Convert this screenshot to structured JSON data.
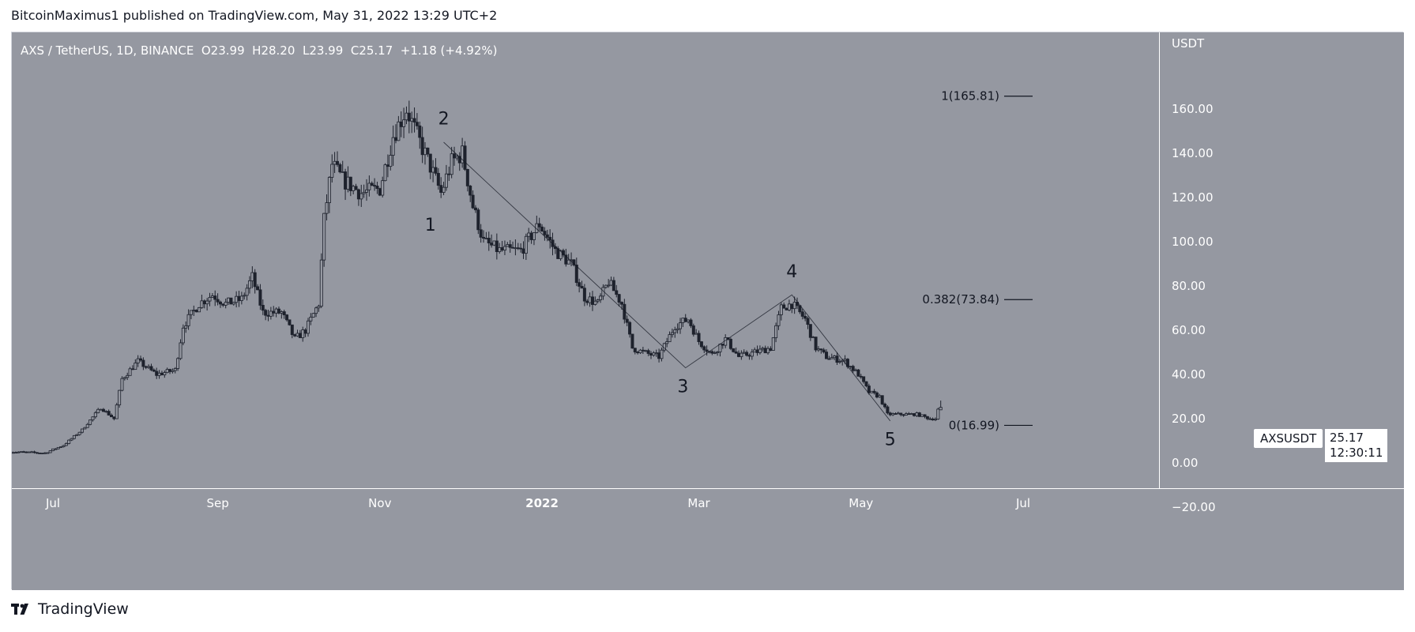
{
  "header": {
    "author": "BitcoinMaximus1",
    "published_text": "published on TradingView.com, May 31, 2022 13:29 UTC+2"
  },
  "legend": {
    "symbol": "AXS / TetherUS, 1D, BINANCE",
    "open_label": "O",
    "open": "23.99",
    "high_label": "H",
    "high": "28.20",
    "low_label": "L",
    "low": "23.99",
    "close_label": "C",
    "close": "25.17",
    "change": "+1.18",
    "change_pct": "(+4.92%)"
  },
  "price_scale": {
    "currency": "USDT",
    "ticks": [
      "160.00",
      "140.00",
      "120.00",
      "100.00",
      "80.00",
      "60.00",
      "40.00",
      "20.00",
      "0.00",
      "−20.00"
    ]
  },
  "last_price": {
    "symbol_tag": "AXSUSDT",
    "price": "25.17",
    "countdown": "12:30:11"
  },
  "branding": {
    "footer_text": "TradingView"
  },
  "colors": {
    "plot_background": "#9598a1",
    "candle": "#1e222d",
    "annotation": "#131722",
    "text_light": "#ffffff",
    "fib_line": "#131722"
  },
  "chart_data": {
    "type": "candlestick",
    "pair": "AXS/USDT",
    "interval": "1D",
    "exchange": "BINANCE",
    "ylim": [
      -25,
      182
    ],
    "x_ticks": [
      {
        "label": "Jul",
        "date": "2021-07-01"
      },
      {
        "label": "Sep",
        "date": "2021-09-01"
      },
      {
        "label": "Nov",
        "date": "2021-11-01"
      },
      {
        "label": "2022",
        "date": "2022-01-01"
      },
      {
        "label": "Mar",
        "date": "2022-03-01"
      },
      {
        "label": "May",
        "date": "2022-05-01"
      },
      {
        "label": "Jul",
        "date": "2022-07-01"
      }
    ],
    "price_anchors": [
      {
        "date": "2021-06-15",
        "close": 5
      },
      {
        "date": "2021-06-28",
        "close": 4.5
      },
      {
        "date": "2021-07-05",
        "close": 8
      },
      {
        "date": "2021-07-12",
        "close": 15
      },
      {
        "date": "2021-07-19",
        "close": 25
      },
      {
        "date": "2021-07-24",
        "close": 20
      },
      {
        "date": "2021-07-27",
        "close": 38
      },
      {
        "date": "2021-08-02",
        "close": 46
      },
      {
        "date": "2021-08-09",
        "close": 40
      },
      {
        "date": "2021-08-16",
        "close": 42
      },
      {
        "date": "2021-08-19",
        "close": 62
      },
      {
        "date": "2021-08-25",
        "close": 72
      },
      {
        "date": "2021-08-30",
        "close": 76
      },
      {
        "date": "2021-09-04",
        "close": 72
      },
      {
        "date": "2021-09-10",
        "close": 74
      },
      {
        "date": "2021-09-14",
        "close": 84
      },
      {
        "date": "2021-09-18",
        "close": 68
      },
      {
        "date": "2021-09-25",
        "close": 68
      },
      {
        "date": "2021-09-30",
        "close": 56
      },
      {
        "date": "2021-10-04",
        "close": 60
      },
      {
        "date": "2021-10-09",
        "close": 72
      },
      {
        "date": "2021-10-11",
        "close": 110
      },
      {
        "date": "2021-10-14",
        "close": 135
      },
      {
        "date": "2021-10-18",
        "close": 128
      },
      {
        "date": "2021-10-25",
        "close": 122
      },
      {
        "date": "2021-11-01",
        "close": 124
      },
      {
        "date": "2021-11-06",
        "close": 148
      },
      {
        "date": "2021-11-11",
        "close": 160
      },
      {
        "date": "2021-11-15",
        "close": 148
      },
      {
        "date": "2021-11-20",
        "close": 134
      },
      {
        "date": "2021-11-24",
        "close": 122
      },
      {
        "date": "2021-11-28",
        "close": 136
      },
      {
        "date": "2021-12-02",
        "close": 140
      },
      {
        "date": "2021-12-06",
        "close": 116
      },
      {
        "date": "2021-12-10",
        "close": 100
      },
      {
        "date": "2021-12-16",
        "close": 96
      },
      {
        "date": "2021-12-24",
        "close": 96
      },
      {
        "date": "2021-12-31",
        "close": 108
      },
      {
        "date": "2022-01-06",
        "close": 96
      },
      {
        "date": "2022-01-12",
        "close": 90
      },
      {
        "date": "2022-01-17",
        "close": 75
      },
      {
        "date": "2022-01-22",
        "close": 72
      },
      {
        "date": "2022-01-26",
        "close": 82
      },
      {
        "date": "2022-01-31",
        "close": 72
      },
      {
        "date": "2022-02-04",
        "close": 52
      },
      {
        "date": "2022-02-08",
        "close": 50
      },
      {
        "date": "2022-02-14",
        "close": 48
      },
      {
        "date": "2022-02-20",
        "close": 62
      },
      {
        "date": "2022-02-25",
        "close": 65
      },
      {
        "date": "2022-03-01",
        "close": 55
      },
      {
        "date": "2022-03-06",
        "close": 49
      },
      {
        "date": "2022-03-11",
        "close": 56
      },
      {
        "date": "2022-03-16",
        "close": 48
      },
      {
        "date": "2022-03-22",
        "close": 50
      },
      {
        "date": "2022-03-28",
        "close": 52
      },
      {
        "date": "2022-04-01",
        "close": 70
      },
      {
        "date": "2022-04-05",
        "close": 72
      },
      {
        "date": "2022-04-10",
        "close": 65
      },
      {
        "date": "2022-04-14",
        "close": 52
      },
      {
        "date": "2022-04-18",
        "close": 48
      },
      {
        "date": "2022-04-25",
        "close": 46
      },
      {
        "date": "2022-04-30",
        "close": 40
      },
      {
        "date": "2022-05-04",
        "close": 32
      },
      {
        "date": "2022-05-08",
        "close": 30
      },
      {
        "date": "2022-05-11",
        "close": 22
      },
      {
        "date": "2022-05-16",
        "close": 22
      },
      {
        "date": "2022-05-22",
        "close": 22
      },
      {
        "date": "2022-05-27",
        "close": 20
      },
      {
        "date": "2022-05-29",
        "close": 20
      },
      {
        "date": "2022-05-30",
        "close": 23.99
      },
      {
        "date": "2022-05-31",
        "close": 25.17
      }
    ],
    "last_candle": {
      "date": "2022-05-31",
      "open": 23.99,
      "high": 28.2,
      "low": 23.99,
      "close": 25.17
    },
    "wave_path": [
      {
        "date": "2021-11-25",
        "price": 145
      },
      {
        "date": "2022-02-24",
        "price": 43
      },
      {
        "date": "2022-04-05",
        "price": 76
      },
      {
        "date": "2022-05-12",
        "price": 19
      }
    ],
    "wave_labels": [
      {
        "label": "1",
        "date": "2021-11-20",
        "price": 105
      },
      {
        "label": "2",
        "date": "2021-11-25",
        "price": 153
      },
      {
        "label": "3",
        "date": "2022-02-23",
        "price": 32
      },
      {
        "label": "4",
        "date": "2022-04-05",
        "price": 84
      },
      {
        "label": "5",
        "date": "2022-05-12",
        "price": 8
      }
    ],
    "fib_levels": [
      {
        "label": "1(165.81)",
        "value": 165.81
      },
      {
        "label": "0.382(73.84)",
        "value": 73.84
      },
      {
        "label": "0(16.99)",
        "value": 16.99
      }
    ]
  }
}
